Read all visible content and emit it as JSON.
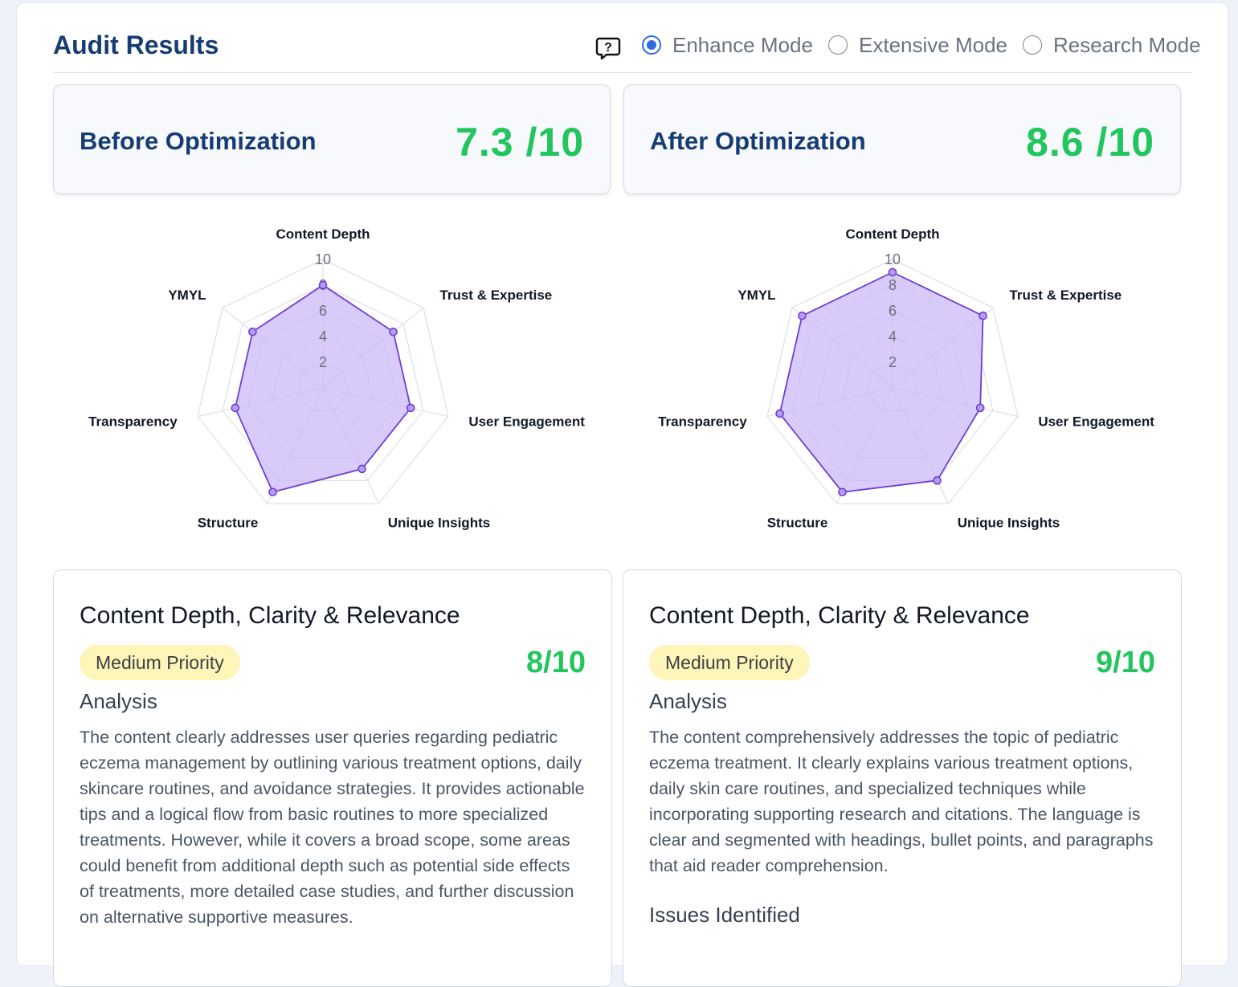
{
  "header": {
    "title": "Audit Results",
    "help_icon": "help-question-icon",
    "modes": [
      {
        "label": "Enhance Mode",
        "selected": true
      },
      {
        "label": "Extensive Mode",
        "selected": false
      },
      {
        "label": "Research Mode",
        "selected": false
      }
    ]
  },
  "scores": {
    "before": {
      "label": "Before Optimization",
      "value": "7.3 /10"
    },
    "after": {
      "label": "After Optimization",
      "value": "8.6 /10"
    }
  },
  "colors": {
    "accent": "#2f6bdc",
    "score_green": "#22c55e",
    "title_blue": "#163d73",
    "radar_fill": "#c9b6f7",
    "radar_line": "#6d3fd0",
    "badge_bg": "#fdf6b8"
  },
  "chart_data": [
    {
      "type": "radar",
      "axes": [
        "Content Depth",
        "Trust & Expertise",
        "User Engagement",
        "Unique Insights",
        "Structure",
        "Transparency",
        "YMYL"
      ],
      "ticks": [
        "2",
        "4",
        "6",
        "8",
        "10"
      ],
      "range": [
        0,
        10
      ],
      "values": [
        8,
        7,
        7,
        7,
        9,
        7,
        7
      ]
    },
    {
      "type": "radar",
      "axes": [
        "Content Depth",
        "Trust & Expertise",
        "User Engagement",
        "Unique Insights",
        "Structure",
        "Transparency",
        "YMYL"
      ],
      "ticks": [
        "2",
        "4",
        "6",
        "8",
        "10"
      ],
      "range": [
        0,
        10
      ],
      "values": [
        9,
        9,
        7,
        8,
        9,
        9,
        9
      ]
    }
  ],
  "details": {
    "before": {
      "title": "Content Depth, Clarity & Relevance",
      "priority": "Medium Priority",
      "score": "8/10",
      "analysis_heading": "Analysis",
      "analysis": "The content clearly addresses user queries regarding pediatric eczema management by outlining various treatment options, daily skincare routines, and avoidance strategies. It provides actionable tips and a logical flow from basic routines to more specialized treatments. However, while it covers a broad scope, some areas could benefit from additional depth such as potential side effects of treatments, more detailed case studies, and further discussion on alternative supportive measures."
    },
    "after": {
      "title": "Content Depth, Clarity & Relevance",
      "priority": "Medium Priority",
      "score": "9/10",
      "analysis_heading": "Analysis",
      "analysis": "The content comprehensively addresses the topic of pediatric eczema treatment. It clearly explains various treatment options, daily skin care routines, and specialized techniques while incorporating supporting research and citations. The language is clear and segmented with headings, bullet points, and paragraphs that aid reader comprehension.",
      "issues_heading": "Issues Identified"
    }
  }
}
